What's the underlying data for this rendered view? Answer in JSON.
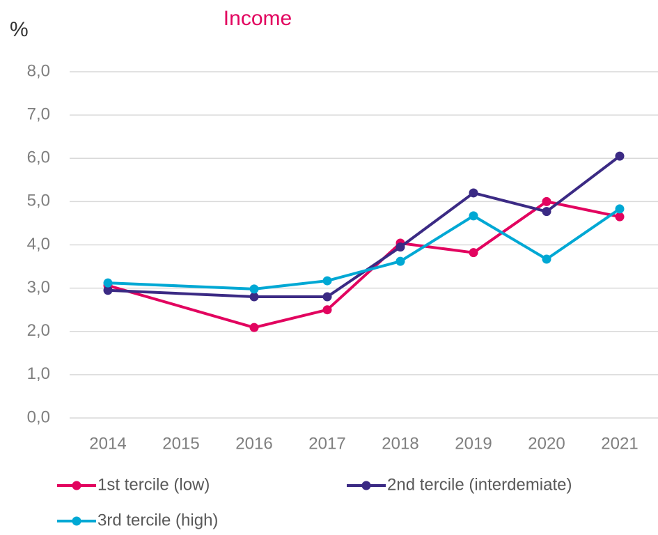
{
  "chart_data": {
    "type": "line",
    "title": "Income",
    "y_label": "%",
    "xticks": [
      2014,
      2015,
      2016,
      2017,
      2018,
      2019,
      2020,
      2021
    ],
    "xlim": [
      2014,
      2021
    ],
    "x": [
      2014,
      2016,
      2017,
      2018,
      2019,
      2020,
      2021
    ],
    "series": [
      {
        "name": "1st tercile (low)",
        "color": "#e2045f",
        "values": [
          3.06,
          2.09,
          2.5,
          4.04,
          3.82,
          5.0,
          4.65
        ]
      },
      {
        "name": "2nd tercile (interdemiate)",
        "color": "#3b2a84",
        "values": [
          2.95,
          2.8,
          2.8,
          3.95,
          5.2,
          4.77,
          6.05
        ]
      },
      {
        "name": "3rd tercile (high)",
        "color": "#00a8d4",
        "values": [
          3.12,
          2.98,
          3.17,
          3.62,
          4.67,
          3.67,
          4.83
        ]
      }
    ],
    "ylim": [
      0,
      8
    ],
    "yticks": [
      {
        "value": 0,
        "label": "0,0"
      },
      {
        "value": 1,
        "label": "1,0"
      },
      {
        "value": 2,
        "label": "2,0"
      },
      {
        "value": 3,
        "label": "3,0"
      },
      {
        "value": 4,
        "label": "4,0"
      },
      {
        "value": 5,
        "label": "5,0"
      },
      {
        "value": 6,
        "label": "6,0"
      },
      {
        "value": 7,
        "label": "7,0"
      },
      {
        "value": 8,
        "label": "8,0"
      }
    ],
    "grid": true,
    "legend": "bottom"
  }
}
